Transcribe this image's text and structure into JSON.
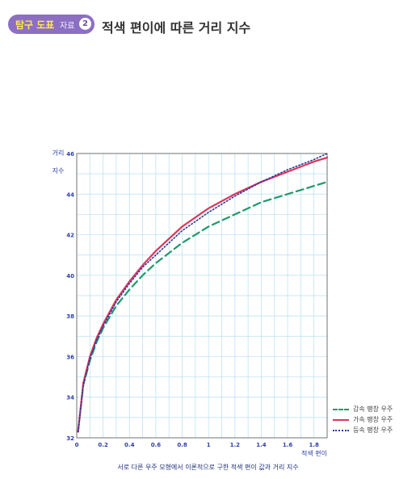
{
  "header": {
    "badge_part1": "탐구 도표",
    "badge_part2": "자료",
    "badge_number": "2",
    "title": "적색 편이에 따른 거리 지수"
  },
  "colors": {
    "accelerating": "#e0345a",
    "decelerating": "#1f9a6a",
    "constant": "#2a3a9a",
    "grid": "#b8dff0",
    "axis_text": "#2b3ea8"
  },
  "chart_data": {
    "type": "line",
    "title": "",
    "xlabel": "적색 편이",
    "ylabel": "거리 지수",
    "xlim": [
      0,
      1.9
    ],
    "ylim": [
      32,
      46
    ],
    "x_ticks": [
      "0",
      "0.2",
      "0.4",
      "0.6",
      "0.8",
      "1",
      "1.2",
      "1.4",
      "1.6",
      "1.8"
    ],
    "y_ticks": [
      "32",
      "34",
      "36",
      "38",
      "40",
      "42",
      "44",
      "46"
    ],
    "grid": true,
    "legend_position": "bottom-right",
    "x": [
      0.01,
      0.05,
      0.1,
      0.15,
      0.2,
      0.3,
      0.4,
      0.5,
      0.6,
      0.7,
      0.8,
      1.0,
      1.2,
      1.4,
      1.6,
      1.8,
      1.9
    ],
    "series": [
      {
        "name": "감속 팽창 우주",
        "style": "dashed",
        "values": [
          32.3,
          34.6,
          35.8,
          36.7,
          37.4,
          38.5,
          39.3,
          40.0,
          40.6,
          41.1,
          41.6,
          42.4,
          43.0,
          43.6,
          44.0,
          44.4,
          44.6
        ]
      },
      {
        "name": "가속 팽창 우주",
        "style": "solid",
        "values": [
          32.3,
          34.7,
          36.0,
          36.9,
          37.6,
          38.8,
          39.7,
          40.5,
          41.2,
          41.8,
          42.4,
          43.3,
          44.0,
          44.6,
          45.1,
          45.6,
          45.8
        ]
      },
      {
        "name": "등속 팽창 우주",
        "style": "dotted",
        "values": [
          32.3,
          34.6,
          35.9,
          36.8,
          37.5,
          38.7,
          39.6,
          40.4,
          41.0,
          41.6,
          42.2,
          43.1,
          43.9,
          44.6,
          45.2,
          45.7,
          46.0
        ]
      }
    ],
    "caption": "서로 다른 우주 모형에서 이론적으로 구한 적색 편이 값과 거리 지수"
  }
}
